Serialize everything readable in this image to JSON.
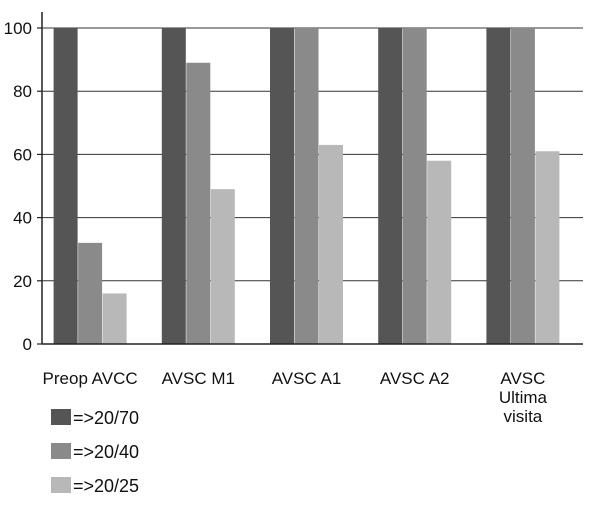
{
  "chart_data": {
    "type": "bar",
    "title": "",
    "xlabel": "",
    "ylabel": "",
    "ylim": [
      0,
      100
    ],
    "yticks": [
      0,
      20,
      40,
      60,
      80,
      100
    ],
    "grid": "horizontal",
    "legend_position": "bottom-left",
    "categories": [
      [
        "Preop AVCC"
      ],
      [
        "AVSC M1"
      ],
      [
        "AVSC A1"
      ],
      [
        "AVSC A2"
      ],
      [
        "AVSC",
        "Ultima",
        "visita"
      ]
    ],
    "series": [
      {
        "name": "=>20/70",
        "color": "#555555",
        "values": [
          100,
          100,
          100,
          100,
          100
        ]
      },
      {
        "name": "=>20/40",
        "color": "#8a8a8a",
        "values": [
          32,
          89,
          100,
          100,
          100
        ]
      },
      {
        "name": "=>20/25",
        "color": "#b8b8b8",
        "values": [
          16,
          49,
          63,
          58,
          61
        ]
      }
    ]
  }
}
